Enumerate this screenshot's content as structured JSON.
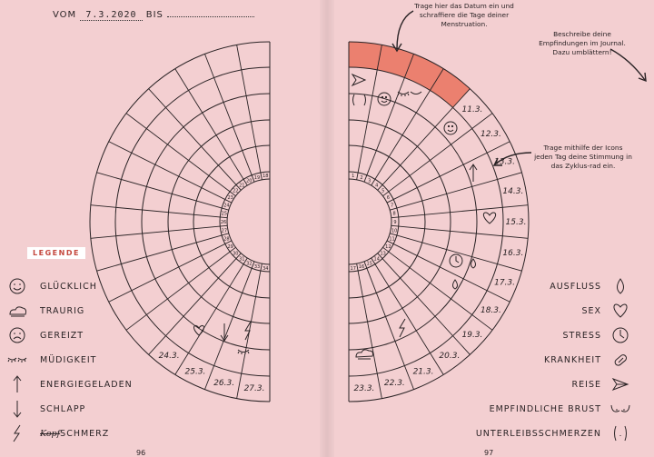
{
  "left_page": {
    "header": {
      "from_label": "VOM",
      "date": "7.3.2020",
      "to_label": "BIS"
    },
    "ring_day_numbers": [
      "34",
      "33",
      "32",
      "31",
      "30",
      "29",
      "28",
      "27",
      "26",
      "25",
      "24",
      "23",
      "22",
      "21",
      "20",
      "19",
      "18"
    ],
    "rim_dates": [
      "27.3.",
      "26.3.",
      "25.3.",
      "24.3."
    ],
    "legend_title": "LEGENDE",
    "legend_items": [
      {
        "icon": "smiley-icon",
        "label": "GLÜCKLICH"
      },
      {
        "icon": "cloud-icon",
        "label": "TRAURIG"
      },
      {
        "icon": "frown-icon",
        "label": "GEREIZT"
      },
      {
        "icon": "closed-eyes-icon",
        "label": "MÜDIGKEIT"
      },
      {
        "icon": "arrow-up-icon",
        "label": "ENERGIEGELADEN"
      },
      {
        "icon": "arrow-down-icon",
        "label": "SCHLAPP"
      },
      {
        "icon": "lightning-icon",
        "label_struck": "Kopf",
        "label": "SCHMERZ"
      }
    ],
    "page_number": "96"
  },
  "right_page": {
    "note_top": "Trage hier das Datum ein und schraffiere die Tage deiner Menstruation.",
    "note_right": "Beschreibe deine Empfindungen im Journal. Dazu umblättern!",
    "note_middle": "Trage mithilfe der Icons jeden Tag deine Stimmung in das Zyklus-rad ein.",
    "ring_day_numbers": [
      "1",
      "2",
      "3",
      "4",
      "5",
      "6",
      "7",
      "8",
      "9",
      "10",
      "11",
      "12",
      "13",
      "14",
      "15",
      "16",
      "17"
    ],
    "rim_dates": [
      "11.3.",
      "12.3.",
      "13.3.",
      "14.3.",
      "15.3.",
      "16.3.",
      "17.3.",
      "18.3.",
      "19.3.",
      "20.3.",
      "21.3.",
      "22.3.",
      "23.3."
    ],
    "legend_items": [
      {
        "icon": "drop-icon",
        "label": "AUSFLUSS"
      },
      {
        "icon": "heart-icon",
        "label": "SEX"
      },
      {
        "icon": "clock-icon",
        "label": "STRESS"
      },
      {
        "icon": "pill-icon",
        "label": "KRANKHEIT"
      },
      {
        "icon": "paper-plane-icon",
        "label": "REISE"
      },
      {
        "icon": "breast-icon",
        "label": "EMPFINDLICHE BRUST"
      },
      {
        "icon": "cramps-icon",
        "label": "UNTERLEIBSSCHMERZEN"
      }
    ],
    "page_number": "97"
  },
  "colors": {
    "background": "#f3cfd1",
    "ink": "#2a2325",
    "accent": "#e8654d"
  }
}
